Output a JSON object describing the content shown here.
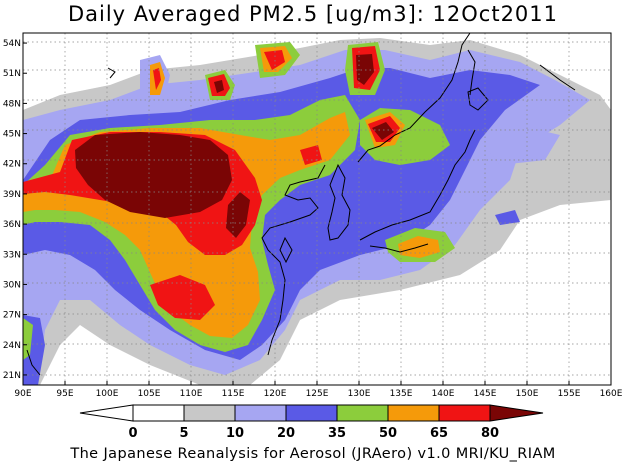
{
  "title": "Daily Averaged PM2.5 [ug/m3]: 12Oct2011",
  "footer": "The Japanese Reanalysis for Aerosol (JRAero) v1.0 MRI/KU_RIAM",
  "map": {
    "lon_range": [
      90,
      160
    ],
    "lat_range": [
      20,
      55
    ],
    "x_ticks": [
      "90E",
      "95E",
      "100E",
      "105E",
      "110E",
      "115E",
      "120E",
      "125E",
      "130E",
      "135E",
      "140E",
      "145E",
      "150E",
      "155E",
      "160E"
    ],
    "y_ticks": [
      "21N",
      "24N",
      "27N",
      "30N",
      "33N",
      "36N",
      "39N",
      "42N",
      "45N",
      "48N",
      "51N",
      "54N"
    ],
    "gridlines": "dotted"
  },
  "colorbar": {
    "labels": [
      "0",
      "5",
      "10",
      "20",
      "35",
      "50",
      "65",
      "80"
    ],
    "colors": {
      "c0": "#ffffff",
      "c5": "#c8c8c8",
      "c10": "#a6a6f2",
      "c20": "#5a5ae6",
      "c35": "#8ccd3c",
      "c50": "#f59a0a",
      "c65": "#f01414",
      "c80": "#7a0505"
    }
  }
}
